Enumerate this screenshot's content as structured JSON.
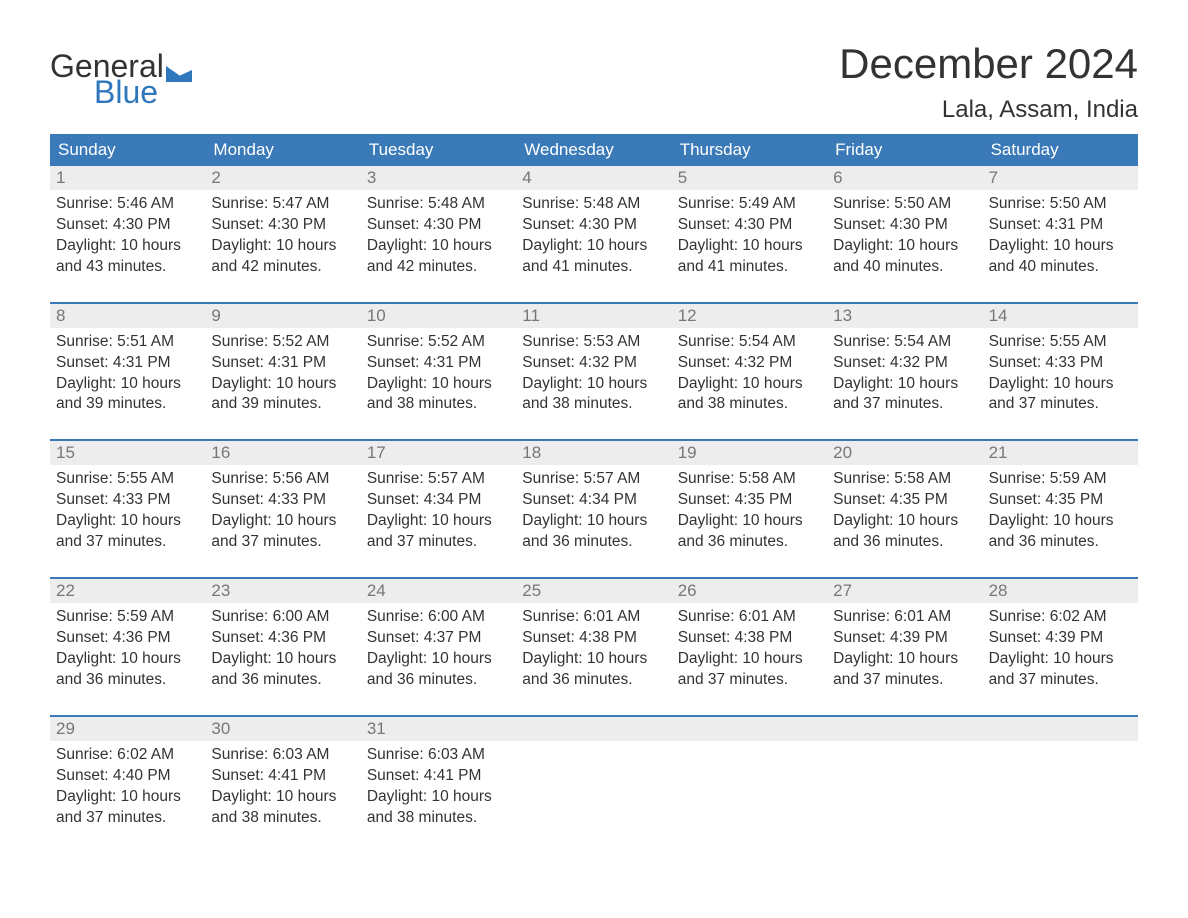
{
  "logo": {
    "word1": "General",
    "word2": "Blue",
    "flag_color": "#2f77bc",
    "text_dark": "#333333"
  },
  "title": "December 2024",
  "location": "Lala, Assam, India",
  "colors": {
    "header_bg": "#3a7ab8",
    "header_text": "#ffffff",
    "daynum_bg": "#ededed",
    "daynum_text": "#777777",
    "body_text": "#333333",
    "week_divider": "#3a7ab8",
    "page_bg": "#ffffff"
  },
  "typography": {
    "title_fontsize": 42,
    "location_fontsize": 24,
    "dow_fontsize": 17,
    "daynum_fontsize": 17,
    "body_fontsize": 15.5,
    "font_family": "Arial"
  },
  "days_of_week": [
    "Sunday",
    "Monday",
    "Tuesday",
    "Wednesday",
    "Thursday",
    "Friday",
    "Saturday"
  ],
  "weeks": [
    [
      {
        "n": "1",
        "sunrise": "Sunrise: 5:46 AM",
        "sunset": "Sunset: 4:30 PM",
        "daylight": "Daylight: 10 hours and 43 minutes."
      },
      {
        "n": "2",
        "sunrise": "Sunrise: 5:47 AM",
        "sunset": "Sunset: 4:30 PM",
        "daylight": "Daylight: 10 hours and 42 minutes."
      },
      {
        "n": "3",
        "sunrise": "Sunrise: 5:48 AM",
        "sunset": "Sunset: 4:30 PM",
        "daylight": "Daylight: 10 hours and 42 minutes."
      },
      {
        "n": "4",
        "sunrise": "Sunrise: 5:48 AM",
        "sunset": "Sunset: 4:30 PM",
        "daylight": "Daylight: 10 hours and 41 minutes."
      },
      {
        "n": "5",
        "sunrise": "Sunrise: 5:49 AM",
        "sunset": "Sunset: 4:30 PM",
        "daylight": "Daylight: 10 hours and 41 minutes."
      },
      {
        "n": "6",
        "sunrise": "Sunrise: 5:50 AM",
        "sunset": "Sunset: 4:30 PM",
        "daylight": "Daylight: 10 hours and 40 minutes."
      },
      {
        "n": "7",
        "sunrise": "Sunrise: 5:50 AM",
        "sunset": "Sunset: 4:31 PM",
        "daylight": "Daylight: 10 hours and 40 minutes."
      }
    ],
    [
      {
        "n": "8",
        "sunrise": "Sunrise: 5:51 AM",
        "sunset": "Sunset: 4:31 PM",
        "daylight": "Daylight: 10 hours and 39 minutes."
      },
      {
        "n": "9",
        "sunrise": "Sunrise: 5:52 AM",
        "sunset": "Sunset: 4:31 PM",
        "daylight": "Daylight: 10 hours and 39 minutes."
      },
      {
        "n": "10",
        "sunrise": "Sunrise: 5:52 AM",
        "sunset": "Sunset: 4:31 PM",
        "daylight": "Daylight: 10 hours and 38 minutes."
      },
      {
        "n": "11",
        "sunrise": "Sunrise: 5:53 AM",
        "sunset": "Sunset: 4:32 PM",
        "daylight": "Daylight: 10 hours and 38 minutes."
      },
      {
        "n": "12",
        "sunrise": "Sunrise: 5:54 AM",
        "sunset": "Sunset: 4:32 PM",
        "daylight": "Daylight: 10 hours and 38 minutes."
      },
      {
        "n": "13",
        "sunrise": "Sunrise: 5:54 AM",
        "sunset": "Sunset: 4:32 PM",
        "daylight": "Daylight: 10 hours and 37 minutes."
      },
      {
        "n": "14",
        "sunrise": "Sunrise: 5:55 AM",
        "sunset": "Sunset: 4:33 PM",
        "daylight": "Daylight: 10 hours and 37 minutes."
      }
    ],
    [
      {
        "n": "15",
        "sunrise": "Sunrise: 5:55 AM",
        "sunset": "Sunset: 4:33 PM",
        "daylight": "Daylight: 10 hours and 37 minutes."
      },
      {
        "n": "16",
        "sunrise": "Sunrise: 5:56 AM",
        "sunset": "Sunset: 4:33 PM",
        "daylight": "Daylight: 10 hours and 37 minutes."
      },
      {
        "n": "17",
        "sunrise": "Sunrise: 5:57 AM",
        "sunset": "Sunset: 4:34 PM",
        "daylight": "Daylight: 10 hours and 37 minutes."
      },
      {
        "n": "18",
        "sunrise": "Sunrise: 5:57 AM",
        "sunset": "Sunset: 4:34 PM",
        "daylight": "Daylight: 10 hours and 36 minutes."
      },
      {
        "n": "19",
        "sunrise": "Sunrise: 5:58 AM",
        "sunset": "Sunset: 4:35 PM",
        "daylight": "Daylight: 10 hours and 36 minutes."
      },
      {
        "n": "20",
        "sunrise": "Sunrise: 5:58 AM",
        "sunset": "Sunset: 4:35 PM",
        "daylight": "Daylight: 10 hours and 36 minutes."
      },
      {
        "n": "21",
        "sunrise": "Sunrise: 5:59 AM",
        "sunset": "Sunset: 4:35 PM",
        "daylight": "Daylight: 10 hours and 36 minutes."
      }
    ],
    [
      {
        "n": "22",
        "sunrise": "Sunrise: 5:59 AM",
        "sunset": "Sunset: 4:36 PM",
        "daylight": "Daylight: 10 hours and 36 minutes."
      },
      {
        "n": "23",
        "sunrise": "Sunrise: 6:00 AM",
        "sunset": "Sunset: 4:36 PM",
        "daylight": "Daylight: 10 hours and 36 minutes."
      },
      {
        "n": "24",
        "sunrise": "Sunrise: 6:00 AM",
        "sunset": "Sunset: 4:37 PM",
        "daylight": "Daylight: 10 hours and 36 minutes."
      },
      {
        "n": "25",
        "sunrise": "Sunrise: 6:01 AM",
        "sunset": "Sunset: 4:38 PM",
        "daylight": "Daylight: 10 hours and 36 minutes."
      },
      {
        "n": "26",
        "sunrise": "Sunrise: 6:01 AM",
        "sunset": "Sunset: 4:38 PM",
        "daylight": "Daylight: 10 hours and 37 minutes."
      },
      {
        "n": "27",
        "sunrise": "Sunrise: 6:01 AM",
        "sunset": "Sunset: 4:39 PM",
        "daylight": "Daylight: 10 hours and 37 minutes."
      },
      {
        "n": "28",
        "sunrise": "Sunrise: 6:02 AM",
        "sunset": "Sunset: 4:39 PM",
        "daylight": "Daylight: 10 hours and 37 minutes."
      }
    ],
    [
      {
        "n": "29",
        "sunrise": "Sunrise: 6:02 AM",
        "sunset": "Sunset: 4:40 PM",
        "daylight": "Daylight: 10 hours and 37 minutes."
      },
      {
        "n": "30",
        "sunrise": "Sunrise: 6:03 AM",
        "sunset": "Sunset: 4:41 PM",
        "daylight": "Daylight: 10 hours and 38 minutes."
      },
      {
        "n": "31",
        "sunrise": "Sunrise: 6:03 AM",
        "sunset": "Sunset: 4:41 PM",
        "daylight": "Daylight: 10 hours and 38 minutes."
      },
      {
        "empty": true
      },
      {
        "empty": true
      },
      {
        "empty": true
      },
      {
        "empty": true
      }
    ]
  ]
}
